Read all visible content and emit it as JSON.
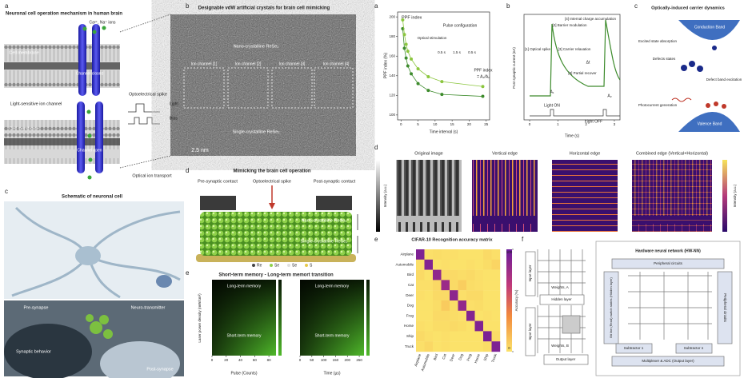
{
  "left": {
    "a": {
      "letter": "a",
      "title": "Neuronal cell operation mechanism in human brain",
      "ions": "Ca²⁺, Na⁺ ions",
      "membrane_top": "Cell membrane",
      "channel_closed": "Channel closed",
      "light_channel": "Light-sensitive ion channel",
      "spike": "Optoelectrical spike",
      "light": "Light",
      "bias": "Bias",
      "membrane_bottom": "Cell membrane",
      "channel_open": "Channel open",
      "transport": "Optical ion transport"
    },
    "b": {
      "letter": "b",
      "title": "Designable vdW artificial crystals for brain cell mimicking",
      "channels": [
        "Ion channel [1]",
        "Ion channel [2]",
        "Ion channel [3]",
        "Ion channel [4]"
      ],
      "nano": "Nano-crystalline ReSe₂",
      "single": "Single-crystalline ReSe₂",
      "scale": "2.5 nm"
    },
    "c": {
      "letter": "c",
      "title": "Schematic of neuronal cell",
      "pre": "Pre-synapse",
      "transmitter": "Neuro-transmitter",
      "behavior": "Synaptic behavior",
      "post": "Post-synapse"
    },
    "d": {
      "letter": "d",
      "title": "Mimicking the brain cell operation",
      "pre": "Pre-synaptic contact",
      "spike": "Optoelectrical spike",
      "post": "Post-synaptic contact",
      "nano": "Nano-crystalline ReSe₂",
      "single": "Single-crystalline ReSe₂",
      "legend": [
        "Re",
        "Se",
        "Se",
        "S"
      ]
    },
    "e": {
      "letter": "e",
      "title": "Short-term memory - Long-term memort transition",
      "ylabel": "Laser power density (mW/cm²)",
      "left": {
        "long": "Long-term memory",
        "short": "Short-term memory",
        "xlabel": "Pulse (Counts)",
        "xlim": [
          0,
          90
        ],
        "xticks": [
          0,
          20,
          40,
          60,
          80
        ]
      },
      "right": {
        "long": "Long-term memory",
        "short": "Short-term memory",
        "xlabel": "Time (µs)",
        "xlim": [
          0,
          270
        ],
        "xticks": [
          0,
          50,
          100,
          150,
          200,
          250
        ]
      }
    }
  },
  "right": {
    "a": {
      "letter": "a",
      "label": "PPF index",
      "config": "Pulse configuration",
      "stim": "Optical stimulation",
      "times": [
        "0.5 s",
        "1.5 s",
        "0.5 s"
      ],
      "formula": [
        "PPF index",
        "= A₂/A₁"
      ],
      "chart": {
        "type": "scatter",
        "xlabel": "Time interval (s)",
        "ylabel": "PPF index (%)",
        "xlim": [
          -1,
          26
        ],
        "xticks": [
          0,
          5,
          10,
          15,
          20,
          25
        ],
        "ylim": [
          95,
          205
        ],
        "yticks": [
          100,
          120,
          140,
          160,
          180,
          200
        ],
        "series": [
          {
            "color": "#3d8b2c",
            "x": [
              0.5,
              1,
              1.5,
              2,
              3,
              5,
              8,
              12,
              24
            ],
            "values": [
              188,
              168,
              158,
              150,
              142,
              132,
              125,
              121,
              119
            ]
          },
          {
            "color": "#8cc63f",
            "x": [
              0.5,
              1,
              1.5,
              2,
              3,
              5,
              8,
              12,
              24
            ],
            "values": [
              197,
              182,
              172,
              165,
              157,
              147,
              139,
              134,
              129
            ]
          }
        ]
      }
    },
    "b": {
      "letter": "b",
      "spike": "[1] Optical spike",
      "barrier": "[2] Barrier modulation",
      "relax": "[3] Carrier relaxation",
      "recover": "[3] Partial recover",
      "accum": "[4] Internal charge accumulation",
      "dt": "Δt",
      "a1": "A₁",
      "a2": "A₂",
      "on": "Light ON",
      "off": "Light OFF",
      "ylabel": "Post synaptic current (nA)",
      "xlabel": "Time (s)",
      "xlim": [
        -0.2,
        3.2
      ],
      "xticks": [
        0,
        1,
        2,
        3
      ]
    },
    "c": {
      "letter": "c",
      "title": "Optically-induced carrier dynamics",
      "cb": "Conduction Band",
      "esa": "Excited state absorption",
      "defects": "Defects states",
      "dbe": "Defect band excitation",
      "photo": "Photocurrent generation",
      "vb": "Valence Band"
    },
    "d": {
      "letter": "d",
      "titles": [
        "Original image",
        "Vertical edge",
        "Horizontal edge",
        "Combined edge (Vertical+Horizontal)"
      ],
      "intensity_left": "Intensity (a.u.)",
      "intensity_right": "Intensity (a.u.)"
    },
    "e": {
      "letter": "e",
      "title": "CIFAR-10 Recognition accuracy matrix",
      "chart": {
        "type": "heatmap",
        "categories": [
          "Airplane",
          "Automobile",
          "Bird",
          "Cat",
          "Deer",
          "Dog",
          "Frog",
          "Horse",
          "Ship",
          "Truck"
        ],
        "values": [
          [
            92,
            1,
            2,
            1,
            1,
            0,
            0,
            0,
            3,
            1
          ],
          [
            1,
            90,
            0,
            1,
            0,
            0,
            1,
            0,
            2,
            5
          ],
          [
            3,
            0,
            85,
            3,
            3,
            2,
            3,
            1,
            0,
            0
          ],
          [
            1,
            1,
            4,
            80,
            3,
            8,
            2,
            1,
            0,
            0
          ],
          [
            1,
            0,
            3,
            3,
            86,
            1,
            3,
            3,
            0,
            0
          ],
          [
            0,
            0,
            2,
            9,
            2,
            84,
            1,
            2,
            0,
            0
          ],
          [
            0,
            0,
            3,
            3,
            2,
            1,
            90,
            0,
            1,
            0
          ],
          [
            1,
            0,
            2,
            2,
            3,
            2,
            0,
            91,
            0,
            0
          ],
          [
            3,
            1,
            0,
            1,
            0,
            0,
            0,
            0,
            93,
            2
          ],
          [
            1,
            4,
            0,
            1,
            0,
            0,
            0,
            0,
            2,
            92
          ]
        ],
        "zlabel": "Accuracy (%)",
        "zlim": [
          0,
          100
        ],
        "zticks": [
          0,
          100
        ]
      }
    },
    "f": {
      "letter": "f",
      "input_a": "Input layer",
      "weights_a": "Weights, A",
      "hidden": "Hidden layer",
      "input_b": "Input layer",
      "weights_b": "Weights, B",
      "output": "Output layer",
      "hw_title": "Hardware neural network (HW-NN)",
      "periph_top": "Peripheral circuits",
      "periph_right": "Peripheral circuits",
      "bitline": "Bit line (Read) switch states (Hidden layer)",
      "sub1": "Subtractor 1",
      "subn": "Subtractor n",
      "mux": "Multiplexer & ADC (Output layer)"
    }
  }
}
